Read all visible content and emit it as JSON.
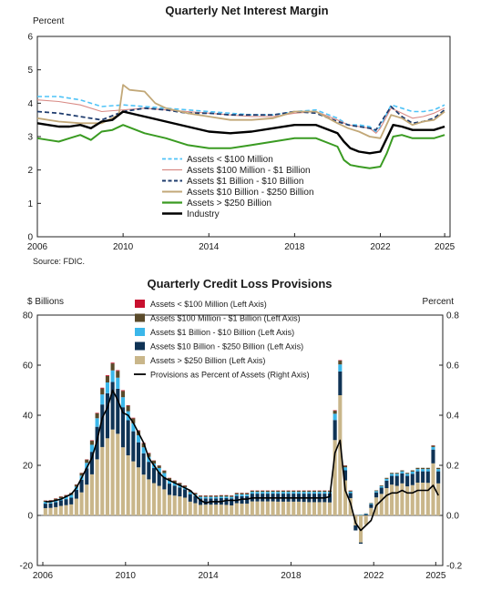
{
  "source": "Source: FDIC.",
  "colors": {
    "lt100m": "#4fc3f7",
    "m100_1b": "#d98b86",
    "b1_10b": "#1f3c6e",
    "b10_250b": "#c2a878",
    "gt250b": "#3a9b22",
    "industry": "#000000",
    "p_lt100m": "#c8102e",
    "p_m100_1b": "#5a4a2a",
    "p_b1_10b": "#3bb7ea",
    "p_b10_250b": "#0f3355",
    "p_gt250b": "#c9b68a",
    "p_ratio": "#000000"
  },
  "chart_data": [
    {
      "type": "line",
      "title": "Quarterly Net Interest Margin",
      "ylabel": "Percent",
      "ylim": [
        0,
        6
      ],
      "yticks": [
        "0",
        "1",
        "2",
        "3",
        "4",
        "5",
        "6"
      ],
      "xlim": [
        2006,
        2025.25
      ],
      "xticks": [
        "2006",
        "2010",
        "2014",
        "2018",
        "2022",
        "2025"
      ],
      "legend_position": "lower-left inside plot",
      "series": [
        {
          "name": "Assets < $100 Million",
          "style": "dashed",
          "x": [
            2006.0,
            2007.0,
            2008.0,
            2009.0,
            2010.0,
            2011.0,
            2012.0,
            2013.0,
            2014.0,
            2015.0,
            2016.0,
            2017.0,
            2018.0,
            2019.0,
            2020.0,
            2020.5,
            2021.0,
            2021.5,
            2021.8,
            2022.0,
            2022.5,
            2023.0,
            2023.5,
            2024.0,
            2024.5,
            2025.0
          ],
          "y": [
            4.2,
            4.2,
            4.1,
            3.9,
            3.95,
            3.9,
            3.85,
            3.8,
            3.75,
            3.7,
            3.65,
            3.65,
            3.75,
            3.8,
            3.55,
            3.35,
            3.35,
            3.3,
            3.15,
            3.3,
            3.95,
            3.85,
            3.75,
            3.75,
            3.8,
            3.95
          ]
        },
        {
          "name": "Assets  $100 Million - $1 Billion",
          "style": "solid",
          "x": [
            2006.0,
            2007.0,
            2008.0,
            2009.0,
            2010.0,
            2011.0,
            2012.0,
            2013.0,
            2014.0,
            2015.0,
            2016.0,
            2017.0,
            2018.0,
            2019.0,
            2020.0,
            2020.5,
            2021.0,
            2021.5,
            2021.8,
            2022.0,
            2022.5,
            2023.0,
            2023.5,
            2024.0,
            2024.5,
            2025.0
          ],
          "y": [
            4.1,
            4.05,
            3.95,
            3.75,
            3.8,
            3.85,
            3.8,
            3.75,
            3.7,
            3.65,
            3.6,
            3.6,
            3.7,
            3.75,
            3.5,
            3.35,
            3.3,
            3.25,
            3.1,
            3.25,
            3.85,
            3.7,
            3.55,
            3.6,
            3.7,
            3.85
          ]
        },
        {
          "name": "Assets  $1 Billion - $10 Billion",
          "style": "dashed",
          "x": [
            2006.0,
            2007.0,
            2008.0,
            2009.0,
            2010.0,
            2011.0,
            2012.0,
            2013.0,
            2014.0,
            2015.0,
            2016.0,
            2017.0,
            2018.0,
            2019.0,
            2020.0,
            2020.5,
            2021.0,
            2021.5,
            2021.8,
            2022.0,
            2022.5,
            2023.0,
            2023.5,
            2024.0,
            2024.5,
            2025.0
          ],
          "y": [
            3.75,
            3.7,
            3.6,
            3.5,
            3.75,
            3.85,
            3.8,
            3.7,
            3.7,
            3.65,
            3.65,
            3.65,
            3.75,
            3.7,
            3.45,
            3.35,
            3.3,
            3.25,
            3.2,
            3.4,
            3.9,
            3.6,
            3.4,
            3.45,
            3.55,
            3.8
          ]
        },
        {
          "name": "Assets  $10 Billion - $250 Billion",
          "style": "solid",
          "x": [
            2006.0,
            2007.0,
            2008.0,
            2009.0,
            2009.8,
            2010.0,
            2010.3,
            2011.0,
            2011.5,
            2012.0,
            2013.0,
            2014.0,
            2015.0,
            2016.0,
            2017.0,
            2018.0,
            2019.0,
            2020.0,
            2020.5,
            2021.0,
            2021.5,
            2022.0,
            2022.5,
            2023.0,
            2023.5,
            2024.0,
            2024.5,
            2025.0
          ],
          "y": [
            3.55,
            3.45,
            3.4,
            3.4,
            3.65,
            4.55,
            4.4,
            4.35,
            4.0,
            3.85,
            3.7,
            3.6,
            3.5,
            3.5,
            3.55,
            3.75,
            3.75,
            3.4,
            3.25,
            3.15,
            3.0,
            2.95,
            3.65,
            3.55,
            3.35,
            3.45,
            3.5,
            3.75
          ]
        },
        {
          "name": "Assets > $250 Billion",
          "style": "solid",
          "x": [
            2006.0,
            2006.5,
            2007.0,
            2007.5,
            2008.0,
            2008.5,
            2009.0,
            2009.5,
            2010.0,
            2011.0,
            2012.0,
            2013.0,
            2014.0,
            2015.0,
            2016.0,
            2017.0,
            2018.0,
            2019.0,
            2020.0,
            2020.3,
            2020.6,
            2021.0,
            2021.5,
            2022.0,
            2022.3,
            2022.6,
            2023.0,
            2023.5,
            2024.0,
            2024.5,
            2025.0
          ],
          "y": [
            2.95,
            2.9,
            2.85,
            2.95,
            3.05,
            2.9,
            3.15,
            3.2,
            3.35,
            3.1,
            2.95,
            2.75,
            2.65,
            2.65,
            2.75,
            2.85,
            2.95,
            2.95,
            2.7,
            2.3,
            2.15,
            2.1,
            2.05,
            2.1,
            2.5,
            3.0,
            3.05,
            2.95,
            2.95,
            2.95,
            3.05
          ]
        },
        {
          "name": "Industry",
          "style": "solid",
          "x": [
            2006.0,
            2006.5,
            2007.0,
            2007.5,
            2008.0,
            2008.5,
            2009.0,
            2009.5,
            2010.0,
            2011.0,
            2012.0,
            2013.0,
            2014.0,
            2015.0,
            2016.0,
            2017.0,
            2018.0,
            2019.0,
            2020.0,
            2020.3,
            2020.6,
            2021.0,
            2021.5,
            2022.0,
            2022.3,
            2022.6,
            2023.0,
            2023.5,
            2024.0,
            2024.5,
            2025.0
          ],
          "y": [
            3.4,
            3.35,
            3.3,
            3.3,
            3.35,
            3.25,
            3.45,
            3.5,
            3.75,
            3.6,
            3.45,
            3.3,
            3.15,
            3.1,
            3.15,
            3.25,
            3.35,
            3.35,
            3.1,
            2.85,
            2.65,
            2.55,
            2.5,
            2.55,
            2.95,
            3.35,
            3.3,
            3.2,
            3.2,
            3.2,
            3.3
          ]
        }
      ]
    },
    {
      "type": "bar",
      "stacked": true,
      "title": "Quarterly Credit Loss Provisions",
      "ylabel": "$ Billions",
      "y2label": "Percent",
      "ylim": [
        -20,
        80
      ],
      "yticks": [
        "-20",
        "0",
        "20",
        "40",
        "60",
        "80"
      ],
      "y2lim": [
        -0.2,
        0.8
      ],
      "y2ticks": [
        "-0.2",
        "0.0",
        "0.2",
        "0.4",
        "0.6",
        "0.8"
      ],
      "xticks": [
        "2006",
        "2010",
        "2014",
        "2018",
        "2022",
        "2025"
      ],
      "legend_position": "top-center inside plot",
      "x": [
        "2006Q1",
        "2006Q2",
        "2006Q3",
        "2006Q4",
        "2007Q1",
        "2007Q2",
        "2007Q3",
        "2007Q4",
        "2008Q1",
        "2008Q2",
        "2008Q3",
        "2008Q4",
        "2009Q1",
        "2009Q2",
        "2009Q3",
        "2009Q4",
        "2010Q1",
        "2010Q2",
        "2010Q3",
        "2010Q4",
        "2011Q1",
        "2011Q2",
        "2011Q3",
        "2011Q4",
        "2012Q1",
        "2012Q2",
        "2012Q3",
        "2012Q4",
        "2013Q1",
        "2013Q2",
        "2013Q3",
        "2013Q4",
        "2014Q1",
        "2014Q2",
        "2014Q3",
        "2014Q4",
        "2015Q1",
        "2015Q2",
        "2015Q3",
        "2015Q4",
        "2016Q1",
        "2016Q2",
        "2016Q3",
        "2016Q4",
        "2017Q1",
        "2017Q2",
        "2017Q3",
        "2017Q4",
        "2018Q1",
        "2018Q2",
        "2018Q3",
        "2018Q4",
        "2019Q1",
        "2019Q2",
        "2019Q3",
        "2019Q4",
        "2020Q1",
        "2020Q2",
        "2020Q3",
        "2020Q4",
        "2021Q1",
        "2021Q2",
        "2021Q3",
        "2021Q4",
        "2022Q1",
        "2022Q2",
        "2022Q3",
        "2022Q4",
        "2023Q1",
        "2023Q2",
        "2023Q3",
        "2023Q4",
        "2024Q1",
        "2024Q2",
        "2024Q3",
        "2024Q4",
        "2025Q1"
      ],
      "series": [
        {
          "name": "Assets < $100 Million (Left Axis)",
          "axis": "left",
          "values": [
            0.1,
            0.1,
            0.1,
            0.1,
            0.1,
            0.1,
            0.1,
            0.1,
            0.1,
            0.2,
            0.2,
            0.3,
            0.3,
            0.3,
            0.3,
            0.3,
            0.2,
            0.2,
            0.2,
            0.2,
            0.2,
            0.1,
            0.1,
            0.1,
            0.1,
            0.1,
            0.1,
            0.1,
            0.1,
            0.1,
            0.1,
            0.1,
            0.1,
            0.1,
            0.1,
            0.1,
            0.1,
            0.1,
            0.1,
            0.1,
            0.1,
            0.1,
            0.1,
            0.1,
            0.1,
            0.1,
            0.1,
            0.1,
            0.1,
            0.1,
            0.1,
            0.1,
            0.1,
            0.1,
            0.1,
            0.1,
            0.2,
            0.2,
            0.1,
            0.1,
            0.0,
            0.0,
            0.0,
            0.0,
            0.0,
            0.0,
            0.0,
            0.0,
            0.0,
            0.0,
            0.0,
            0.0,
            0.0,
            0.0,
            0.0,
            0.1,
            0.0
          ]
        },
        {
          "name": "Assets  $100 Million - $1 Billion (Left Axis)",
          "axis": "left",
          "values": [
            0.5,
            0.5,
            0.6,
            0.6,
            0.6,
            0.7,
            0.8,
            1.0,
            1.3,
            1.6,
            2.0,
            2.4,
            2.6,
            2.8,
            2.7,
            2.5,
            2.2,
            2.0,
            1.8,
            1.6,
            1.4,
            1.2,
            1.0,
            1.0,
            0.9,
            0.8,
            0.7,
            0.6,
            0.6,
            0.5,
            0.5,
            0.5,
            0.5,
            0.5,
            0.5,
            0.5,
            0.5,
            0.5,
            0.5,
            0.5,
            0.5,
            0.5,
            0.5,
            0.5,
            0.5,
            0.5,
            0.5,
            0.5,
            0.5,
            0.5,
            0.5,
            0.5,
            0.5,
            0.5,
            0.5,
            0.5,
            1.2,
            1.5,
            0.7,
            0.4,
            0.0,
            0.1,
            0.1,
            0.2,
            0.3,
            0.3,
            0.4,
            0.4,
            0.4,
            0.4,
            0.4,
            0.5,
            0.5,
            0.5,
            0.5,
            0.6,
            0.5
          ]
        },
        {
          "name": "Assets  $1 Billion - $10 Billion (Left Axis)",
          "axis": "left",
          "values": [
            0.7,
            0.7,
            0.8,
            0.9,
            1.0,
            1.1,
            1.3,
            1.7,
            2.2,
            2.8,
            3.4,
            4.0,
            4.3,
            4.6,
            4.4,
            4.0,
            3.6,
            3.2,
            2.8,
            2.4,
            2.0,
            1.8,
            1.6,
            1.5,
            1.3,
            1.2,
            1.0,
            0.9,
            0.8,
            0.7,
            0.6,
            0.6,
            0.6,
            0.6,
            0.6,
            0.6,
            0.6,
            0.6,
            0.7,
            0.7,
            0.7,
            0.7,
            0.7,
            0.7,
            0.7,
            0.7,
            0.7,
            0.7,
            0.7,
            0.7,
            0.7,
            0.7,
            0.7,
            0.7,
            0.7,
            0.7,
            2.5,
            2.8,
            1.2,
            0.6,
            0.0,
            0.2,
            0.2,
            0.3,
            0.5,
            0.6,
            0.7,
            0.8,
            0.8,
            0.8,
            0.8,
            0.9,
            0.9,
            0.9,
            0.9,
            1.0,
            0.9
          ]
        },
        {
          "name": "Assets  $10 Billion - $250 Billion (Left Axis)",
          "axis": "left",
          "values": [
            1.8,
            1.8,
            2.0,
            2.2,
            2.4,
            2.7,
            3.5,
            5.0,
            6.5,
            9.0,
            13.0,
            17.0,
            18.0,
            19.0,
            18.0,
            16.0,
            14.0,
            12.0,
            10.0,
            8.5,
            7.0,
            6.0,
            5.5,
            5.0,
            4.5,
            4.0,
            3.6,
            3.3,
            3.0,
            2.8,
            2.6,
            2.5,
            2.5,
            2.5,
            2.6,
            2.7,
            2.8,
            2.9,
            3.0,
            3.0,
            3.1,
            3.1,
            3.1,
            3.1,
            3.1,
            3.2,
            3.2,
            3.2,
            3.2,
            3.2,
            3.3,
            3.4,
            3.4,
            3.4,
            3.4,
            3.5,
            8.0,
            9.5,
            4.0,
            2.0,
            -2.0,
            -0.5,
            0.5,
            1.5,
            2.0,
            2.5,
            3.0,
            3.5,
            4.0,
            4.0,
            4.2,
            4.5,
            4.5,
            4.5,
            4.6,
            5.5,
            4.8
          ]
        },
        {
          "name": "Assets > $250 Billion (Left Axis)",
          "axis": "left",
          "values": [
            2.9,
            3.0,
            3.3,
            3.8,
            4.1,
            4.4,
            6.7,
            9.2,
            12.3,
            16.4,
            22.4,
            27.3,
            30.8,
            34.3,
            32.6,
            27.2,
            24.0,
            21.6,
            19.2,
            16.3,
            14.4,
            12.9,
            11.8,
            10.4,
            8.2,
            7.9,
            7.6,
            7.1,
            5.5,
            4.9,
            4.2,
            4.3,
            4.3,
            4.3,
            4.3,
            4.2,
            4.0,
            4.9,
            4.7,
            4.7,
            5.6,
            5.6,
            5.6,
            5.6,
            5.6,
            5.5,
            5.5,
            5.5,
            5.5,
            5.5,
            5.4,
            5.3,
            5.3,
            5.3,
            5.3,
            5.2,
            30.1,
            48.0,
            14.0,
            6.9,
            -4.0,
            -10.8,
            -3.8,
            3.0,
            7.2,
            8.6,
            10.9,
            12.3,
            11.8,
            12.8,
            11.6,
            12.1,
            13.1,
            13.1,
            13.0,
            20.8,
            12.8
          ]
        },
        {
          "name": "Provisions as Percent of Assets (Right Axis)",
          "axis": "right",
          "type": "line",
          "values": [
            0.055,
            0.055,
            0.06,
            0.065,
            0.075,
            0.085,
            0.11,
            0.15,
            0.19,
            0.23,
            0.3,
            0.39,
            0.43,
            0.5,
            0.46,
            0.41,
            0.4,
            0.37,
            0.33,
            0.29,
            0.23,
            0.2,
            0.17,
            0.15,
            0.14,
            0.13,
            0.12,
            0.11,
            0.1,
            0.08,
            0.06,
            0.05,
            0.055,
            0.055,
            0.055,
            0.06,
            0.06,
            0.06,
            0.065,
            0.065,
            0.07,
            0.07,
            0.07,
            0.07,
            0.07,
            0.07,
            0.07,
            0.07,
            0.07,
            0.07,
            0.07,
            0.07,
            0.07,
            0.07,
            0.07,
            0.075,
            0.25,
            0.3,
            0.1,
            0.05,
            -0.03,
            -0.06,
            -0.04,
            -0.02,
            0.04,
            0.06,
            0.08,
            0.09,
            0.09,
            0.1,
            0.09,
            0.09,
            0.1,
            0.1,
            0.1,
            0.12,
            0.08
          ]
        }
      ]
    }
  ]
}
